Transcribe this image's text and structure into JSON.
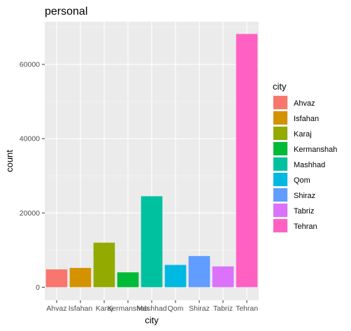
{
  "chart_data": {
    "type": "bar",
    "title": "personal",
    "xlabel": "city",
    "ylabel": "count",
    "categories": [
      "Ahvaz",
      "Isfahan",
      "Karaj",
      "Kermanshah",
      "Mashhad",
      "Qom",
      "Shiraz",
      "Tabriz",
      "Tehran"
    ],
    "values": [
      4800,
      5200,
      12000,
      4000,
      24500,
      6000,
      8400,
      5600,
      68200
    ],
    "colors": [
      "#F8766D",
      "#D39200",
      "#93AA00",
      "#00BA38",
      "#00C19F",
      "#00B9E3",
      "#619CFF",
      "#DB72FB",
      "#FF61C3"
    ],
    "ylim": [
      -3500,
      71500
    ],
    "yticks": [
      0,
      20000,
      40000,
      60000
    ],
    "ytick_labels": [
      "0",
      "20000",
      "40000",
      "60000"
    ],
    "grid": true,
    "panel_background": "#EBEBEB",
    "legend": {
      "title": "city",
      "position": "right",
      "entries": [
        "Ahvaz",
        "Isfahan",
        "Karaj",
        "Kermanshah",
        "Mashhad",
        "Qom",
        "Shiraz",
        "Tabriz",
        "Tehran"
      ]
    }
  }
}
